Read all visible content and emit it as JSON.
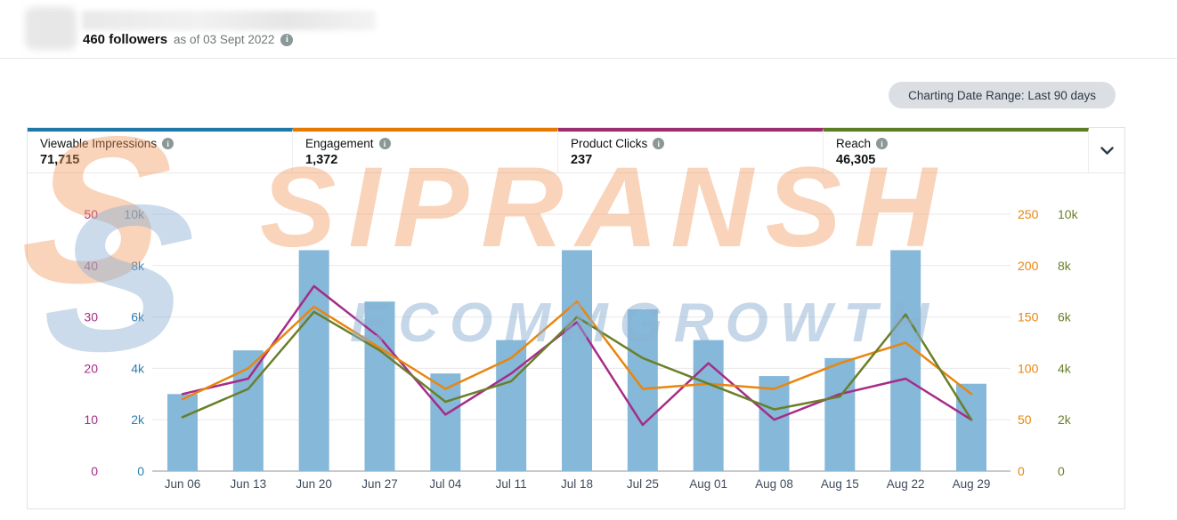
{
  "header": {
    "followers_count": "460 followers",
    "as_of": "as of 03 Sept 2022"
  },
  "toolbar": {
    "date_range_label": "Charting Date Range: Last 90 days"
  },
  "metrics": [
    {
      "label": "Viewable Impressions",
      "value": "71,715",
      "color": "#1f78a8"
    },
    {
      "label": "Engagement",
      "value": "1,372",
      "color": "#e67a00"
    },
    {
      "label": "Product Clicks",
      "value": "237",
      "color": "#9c2d6e"
    },
    {
      "label": "Reach",
      "value": "46,305",
      "color": "#5c7d23"
    }
  ],
  "watermark": {
    "logo_glyph": "S",
    "title": "SIPRANSH",
    "subtitle": "ECOMMGROWTH"
  },
  "chart_data": {
    "type": "bar",
    "subtype": "combo-bar-line",
    "categories": [
      "Jun 06",
      "Jun 13",
      "Jun 20",
      "Jun 27",
      "Jul 04",
      "Jul 11",
      "Jul 18",
      "Jul 25",
      "Aug 01",
      "Aug 08",
      "Aug 15",
      "Aug 22",
      "Aug 29"
    ],
    "series": [
      {
        "name": "Viewable Impressions",
        "type": "bar",
        "axis": "left_inner",
        "color": "#85b8d9",
        "values": [
          3000,
          4700,
          8600,
          6600,
          3800,
          5100,
          8600,
          6300,
          5100,
          3700,
          4400,
          8600,
          3400
        ]
      },
      {
        "name": "Product Clicks",
        "type": "line",
        "axis": "left_outer",
        "color": "#a62c87",
        "values": [
          15,
          18,
          36,
          26,
          11,
          19,
          29,
          9,
          21,
          10,
          15,
          18,
          10
        ]
      },
      {
        "name": "Engagement",
        "type": "line",
        "axis": "right_inner",
        "color": "#e8860f",
        "values": [
          70,
          100,
          160,
          120,
          80,
          110,
          165,
          80,
          85,
          80,
          105,
          125,
          75
        ]
      },
      {
        "name": "Reach",
        "type": "line",
        "axis": "right_outer",
        "color": "#6a7f2a",
        "values": [
          2100,
          3200,
          6200,
          4700,
          2700,
          3500,
          6000,
          4400,
          3400,
          2400,
          2900,
          6100,
          2000
        ]
      }
    ],
    "axes": {
      "left_outer": {
        "ticks": [
          "0",
          "10",
          "20",
          "30",
          "40",
          "50"
        ],
        "max": 50,
        "color": "#a62c87"
      },
      "left_inner": {
        "ticks": [
          "0",
          "2k",
          "4k",
          "6k",
          "8k",
          "10k"
        ],
        "max": 10000,
        "color": "#2e7eb0"
      },
      "right_inner": {
        "ticks": [
          "0",
          "50",
          "100",
          "150",
          "200",
          "250"
        ],
        "max": 250,
        "color": "#e8860f"
      },
      "right_outer": {
        "ticks": [
          "0",
          "2k",
          "4k",
          "6k",
          "8k",
          "10k"
        ],
        "max": 10000,
        "color": "#6a7f2a"
      }
    },
    "title": "",
    "xlabel": "",
    "ylabel": "",
    "grid": true,
    "legend": "none",
    "xlabel_color": "#3f4b5b"
  }
}
